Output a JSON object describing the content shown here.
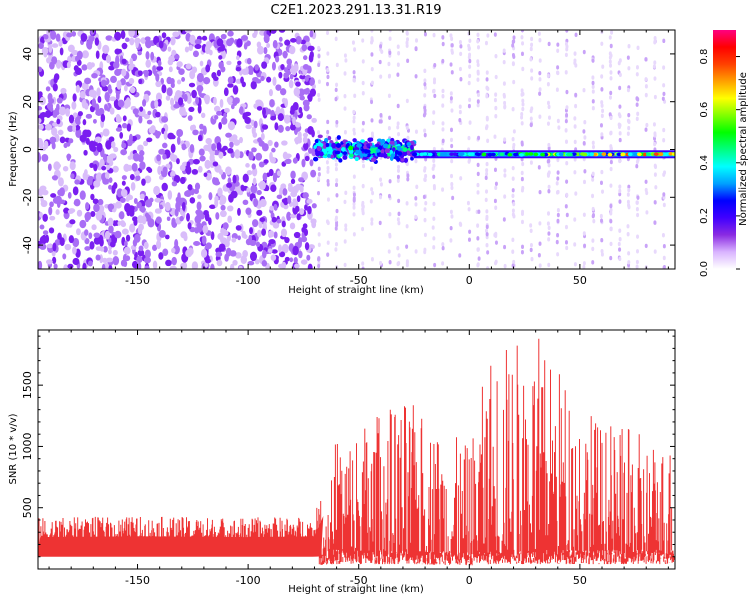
{
  "figure_title": "C2E1.2023.291.13.31.R19",
  "chart_data": [
    {
      "type": "heatmap",
      "title": "",
      "xlabel": "Height of straight line (km)",
      "ylabel": "Frequency (Hz)",
      "xlim": [
        -195,
        93
      ],
      "ylim": [
        -50,
        50
      ],
      "xticks": [
        -150,
        -100,
        -50,
        0,
        50
      ],
      "yticks": [
        -40,
        -20,
        0,
        20,
        40
      ],
      "colorbar": {
        "label": "Normalized spectral amplitude",
        "range": [
          0,
          0.9
        ],
        "ticks": [
          "0.0",
          "0.2",
          "0.4",
          "0.6",
          "0.8"
        ],
        "colors": [
          "#ffffff",
          "#d9b3ff",
          "#8a2be2",
          "#4000ff",
          "#0000ff",
          "#00a0ff",
          "#00ffff",
          "#00ff80",
          "#00ff00",
          "#80ff00",
          "#ffff00",
          "#ffa000",
          "#ff4000",
          "#ff0000",
          "#ff0080"
        ]
      },
      "regions": [
        {
          "x_range": [
            -195,
            -70
          ],
          "description": "broadband noise",
          "amplitude": 0.12
        },
        {
          "x_range": [
            -70,
            -25
          ],
          "center_freq_hz": 0,
          "half_width_hz": 5,
          "peak_amplitude": 0.5
        },
        {
          "x_range": [
            -25,
            93
          ],
          "center_freq_hz": -2,
          "half_width_hz": 2,
          "peak_amplitude": 0.85
        }
      ],
      "grid": false
    },
    {
      "type": "line",
      "title": "",
      "xlabel": "Height of straight line (km)",
      "ylabel": "SNR (10 * v/v)",
      "xlim": [
        -195,
        93
      ],
      "ylim": [
        0,
        1950
      ],
      "xticks": [
        -150,
        -100,
        -50,
        0,
        50
      ],
      "yticks": [
        500,
        1000,
        1500
      ],
      "series": [
        {
          "color": "#ee3333",
          "envelope": [
            {
              "x": -195,
              "low": 30,
              "high": 420
            },
            {
              "x": -150,
              "low": 30,
              "high": 430
            },
            {
              "x": -100,
              "low": 30,
              "high": 420
            },
            {
              "x": -70,
              "low": 30,
              "high": 430
            },
            {
              "x": -60,
              "low": 40,
              "high": 1100
            },
            {
              "x": -30,
              "low": 40,
              "high": 1400
            },
            {
              "x": 0,
              "low": 30,
              "high": 1000
            },
            {
              "x": 10,
              "low": 40,
              "high": 1850
            },
            {
              "x": 30,
              "low": 40,
              "high": 1950
            },
            {
              "x": 60,
              "low": 40,
              "high": 1200
            },
            {
              "x": 93,
              "low": 40,
              "high": 1050
            }
          ]
        }
      ],
      "grid": false
    }
  ]
}
